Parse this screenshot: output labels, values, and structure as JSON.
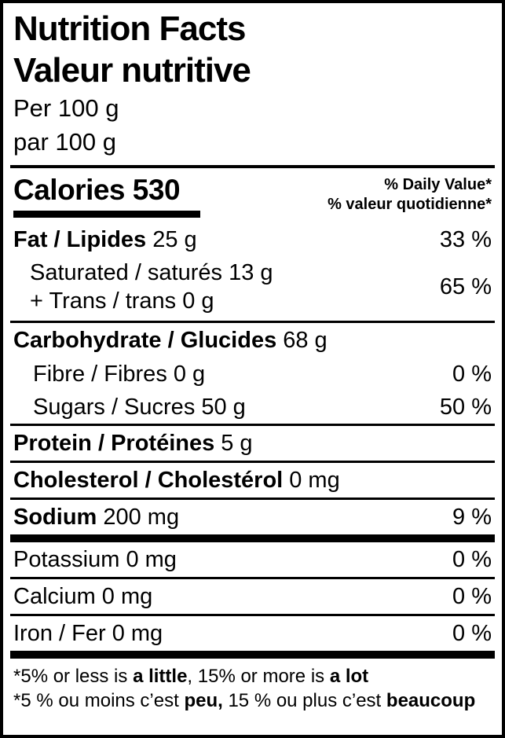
{
  "colors": {
    "ink": "#000000",
    "background": "#ffffff"
  },
  "header": {
    "title_en": "Nutrition Facts",
    "title_fr": "Valeur nutritive",
    "serving_en": "Per 100 g",
    "serving_fr": "par 100 g"
  },
  "calories": {
    "label": "Calories",
    "value": "530"
  },
  "daily_value_header": {
    "en": "% Daily Value*",
    "fr": "% valeur quotidienne*"
  },
  "nutrients": {
    "fat": {
      "label": "Fat / Lipides",
      "amount": "25 g",
      "dv": "33 %"
    },
    "saturated": {
      "line1": "Saturated / saturés 13 g",
      "line2": "+ Trans / trans 0 g",
      "dv": "65 %"
    },
    "carbohydrate": {
      "label": "Carbohydrate / Glucides",
      "amount": "68 g"
    },
    "fibre": {
      "label": "Fibre / Fibres 0 g",
      "dv": "0 %"
    },
    "sugars": {
      "label": "Sugars / Sucres 50 g",
      "dv": "50 %"
    },
    "protein": {
      "label": "Protein / Protéines",
      "amount": "5 g"
    },
    "cholesterol": {
      "label": "Cholesterol / Cholestérol",
      "amount": "0 mg"
    },
    "sodium": {
      "label": "Sodium",
      "amount": "200 mg",
      "dv": "9 %"
    },
    "potassium": {
      "label": "Potassium 0 mg",
      "dv": "0 %"
    },
    "calcium": {
      "label": "Calcium 0 mg",
      "dv": "0 %"
    },
    "iron": {
      "label": "Iron / Fer 0 mg",
      "dv": "0 %"
    }
  },
  "footnotes": {
    "en": {
      "pre": "*5% or less is ",
      "bold1": "a little",
      "mid": ", 15% or more is ",
      "bold2": "a lot"
    },
    "fr": {
      "pre": "*5 % ou moins c’est ",
      "bold1": "peu,",
      "mid": " 15 % ou plus c’est ",
      "bold2": "beaucoup"
    }
  }
}
